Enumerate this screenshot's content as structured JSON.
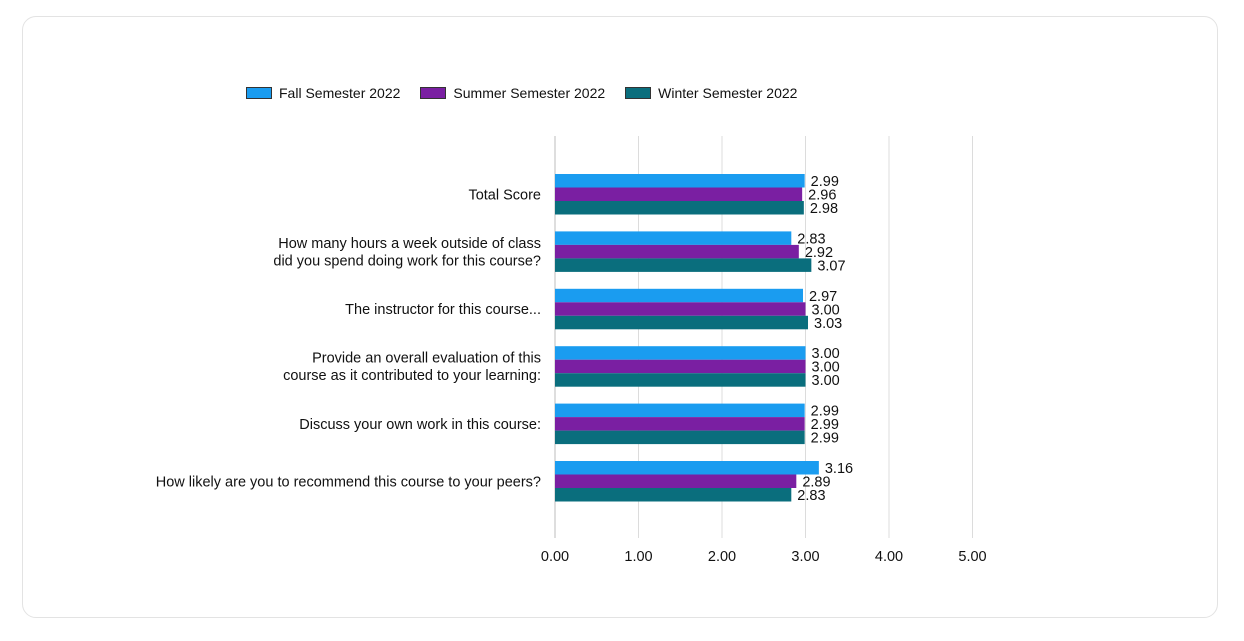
{
  "chart_data": {
    "type": "bar",
    "orientation": "horizontal",
    "categories": [
      [
        "Total Score"
      ],
      [
        "How many hours a week outside of class",
        "did you spend doing work for this course?"
      ],
      [
        "The instructor for this course..."
      ],
      [
        "Provide an overall evaluation of this",
        "course as it contributed to your learning:"
      ],
      [
        "Discuss your own work in this course:"
      ],
      [
        "How likely are you to recommend this course to your peers?"
      ]
    ],
    "series": [
      {
        "name": "Fall Semester 2022",
        "color": "#1a9cf0",
        "values": [
          2.99,
          2.83,
          2.97,
          3.0,
          2.99,
          3.16
        ],
        "labels": [
          "2.99",
          "2.83",
          "2.97",
          "3.00",
          "2.99",
          "3.16"
        ]
      },
      {
        "name": "Summer Semester 2022",
        "color": "#7a1fa2",
        "values": [
          2.96,
          2.92,
          3.0,
          3.0,
          2.99,
          2.89
        ],
        "labels": [
          "2.96",
          "2.92",
          "3.00",
          "3.00",
          "2.99",
          "2.89"
        ]
      },
      {
        "name": "Winter Semester 2022",
        "color": "#0a6e7d",
        "values": [
          2.98,
          3.07,
          3.03,
          3.0,
          2.99,
          2.83
        ],
        "labels": [
          "2.98",
          "3.07",
          "3.03",
          "3.00",
          "2.99",
          "2.83"
        ]
      }
    ],
    "xlim": [
      0,
      5
    ],
    "xticks": [
      "0.00",
      "1.00",
      "2.00",
      "3.00",
      "4.00",
      "5.00"
    ],
    "grid": true,
    "legend": "top"
  }
}
